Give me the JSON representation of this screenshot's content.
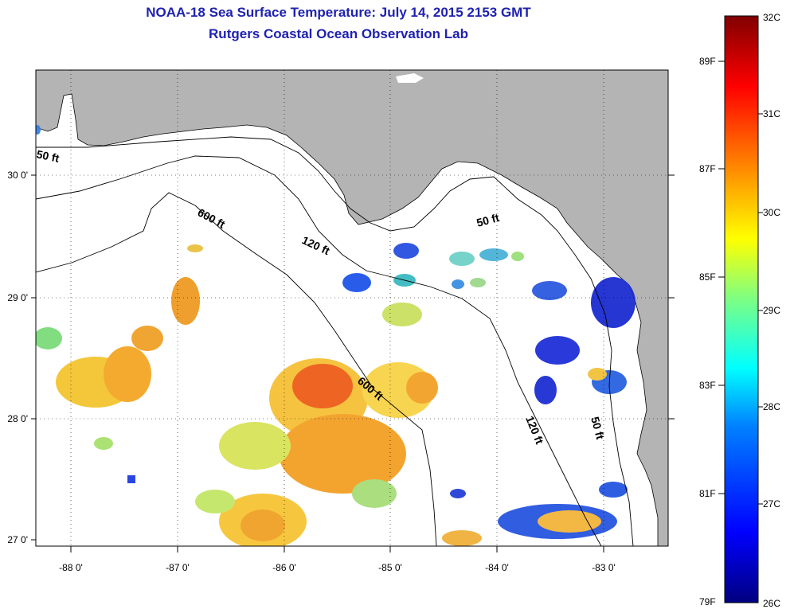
{
  "title": {
    "line1": "NOAA-18 Sea Surface Temperature:  July 14, 2015 2153 GMT",
    "line2": "Rutgers Coastal Ocean Observation Lab"
  },
  "axes": {
    "lon_labels": [
      "-88 0'",
      "-87 0'",
      "-86 0'",
      "-85 0'",
      "-84 0'",
      "-83 0'"
    ],
    "lat_labels": [
      "30 0'",
      "29 0'",
      "28 0'",
      "27 0'"
    ]
  },
  "contours": {
    "c50_west": "50 ft",
    "c600_north": "600 ft",
    "c120_north": "120 ft",
    "c50_east": "50 ft",
    "c600_south": "600 ft",
    "c120_south": "120 ft",
    "c50_south": "50 ft"
  },
  "colorbar": {
    "colors": [
      "#000080",
      "#0000ff",
      "#0080ff",
      "#00ffff",
      "#80ff80",
      "#ffff00",
      "#ff8000",
      "#ff0000",
      "#800000"
    ],
    "fahrenheit": [
      "89F",
      "87F",
      "85F",
      "83F",
      "81F",
      "79F"
    ],
    "celsius": [
      "32C",
      "31C",
      "30C",
      "29C",
      "28C",
      "27C",
      "26C"
    ]
  },
  "legend_colors": {
    "land": "#b4b4b4",
    "title": "#1f22b0"
  }
}
